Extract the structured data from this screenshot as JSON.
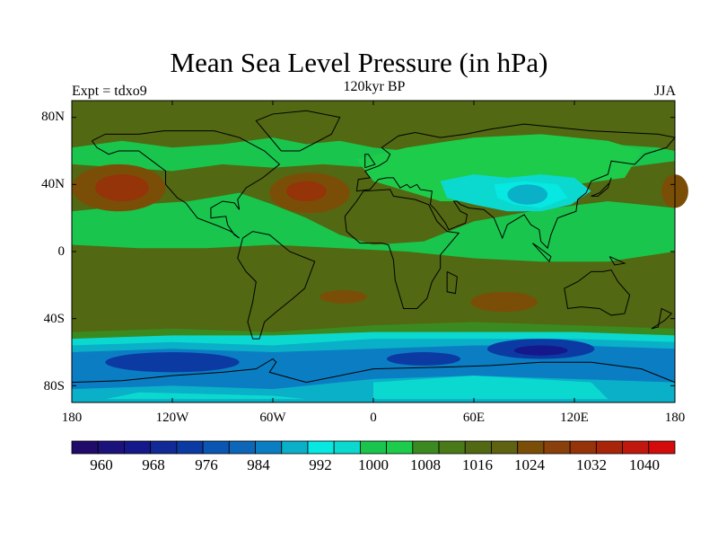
{
  "title": "Mean Sea Level Pressure (in hPa)",
  "left_label": "Expt = tdxo9",
  "center_label": "120kyr BP",
  "right_label": "JJA",
  "lat_ticks": [
    "80N",
    "40N",
    "0",
    "40S",
    "80S"
  ],
  "lon_ticks": [
    "180",
    "120W",
    "60W",
    "0",
    "60E",
    "120E",
    "180"
  ],
  "colorbar": {
    "labels": [
      "960",
      "968",
      "976",
      "984",
      "992",
      "1000",
      "1008",
      "1016",
      "1024",
      "1032",
      "1040"
    ],
    "colors": [
      "#200b6b",
      "#1c127b",
      "#15188a",
      "#112a95",
      "#0c3aa3",
      "#0b55b3",
      "#0d66b8",
      "#0b7ec3",
      "#09b0c8",
      "#06e8e1",
      "#0bd9cf",
      "#19c54d",
      "#1ecc4b",
      "#3b8a20",
      "#4a7a18",
      "#526812",
      "#5f6210",
      "#7b4e08",
      "#8a400a",
      "#953309",
      "#a8250a",
      "#c0180c",
      "#d30b0b"
    ]
  },
  "map": {
    "lon_range": [
      -180,
      180
    ],
    "lat_range": [
      -90,
      90
    ],
    "colors": {
      "ocean_ridge": "#526812",
      "ridge_mid": "#3b8a20",
      "high_1024": "#7b4e08",
      "high_1032": "#953309",
      "low_1008": "#19c54d",
      "low_1004": "#1ecc4b",
      "low_1000": "#0bd9cf",
      "low_996": "#06e8e1",
      "low_992": "#09b0c8",
      "low_984": "#0b7ec3",
      "low_976": "#0c3aa3",
      "low_968": "#15188a",
      "coast": "#000000"
    }
  }
}
